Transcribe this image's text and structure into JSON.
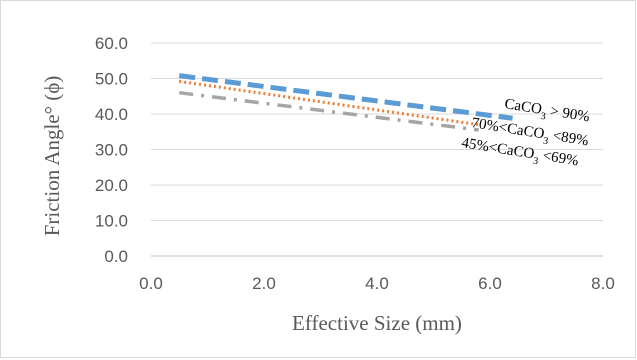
{
  "chart_data": {
    "type": "line",
    "title": "",
    "xlabel": "Effective Size (mm)",
    "ylabel": "Friction Angle° (ϕ)",
    "xlim": [
      0,
      8
    ],
    "ylim": [
      0,
      60
    ],
    "x_ticks": [
      "0.0",
      "2.0",
      "4.0",
      "6.0",
      "8.0"
    ],
    "y_ticks": [
      "0.0",
      "10.0",
      "20.0",
      "30.0",
      "40.0",
      "50.0",
      "60.0"
    ],
    "grid": {
      "horizontal": true,
      "vertical": false
    },
    "legend": "none",
    "series": [
      {
        "name": "CaCO3 > 90%",
        "label_parts": [
          "CaCO",
          "3",
          " > 90%"
        ],
        "color": "#5b9bd5",
        "style": "dashed-thick",
        "x": [
          0.5,
          6.4
        ],
        "y": [
          50.8,
          38.8
        ]
      },
      {
        "name": "70%<CaCO3 <89%",
        "label_parts": [
          "70%<CaCO",
          "3",
          " <89%"
        ],
        "color": "#ed7d31",
        "style": "dotted",
        "x": [
          0.5,
          5.8
        ],
        "y": [
          49.2,
          37.0
        ]
      },
      {
        "name": "45%<CaCO3 <69%",
        "label_parts": [
          "45%<CaCO",
          "3",
          " <69%"
        ],
        "color": "#a5a5a5",
        "style": "dash-dot",
        "x": [
          0.5,
          5.8
        ],
        "y": [
          46.0,
          35.5
        ]
      }
    ]
  }
}
